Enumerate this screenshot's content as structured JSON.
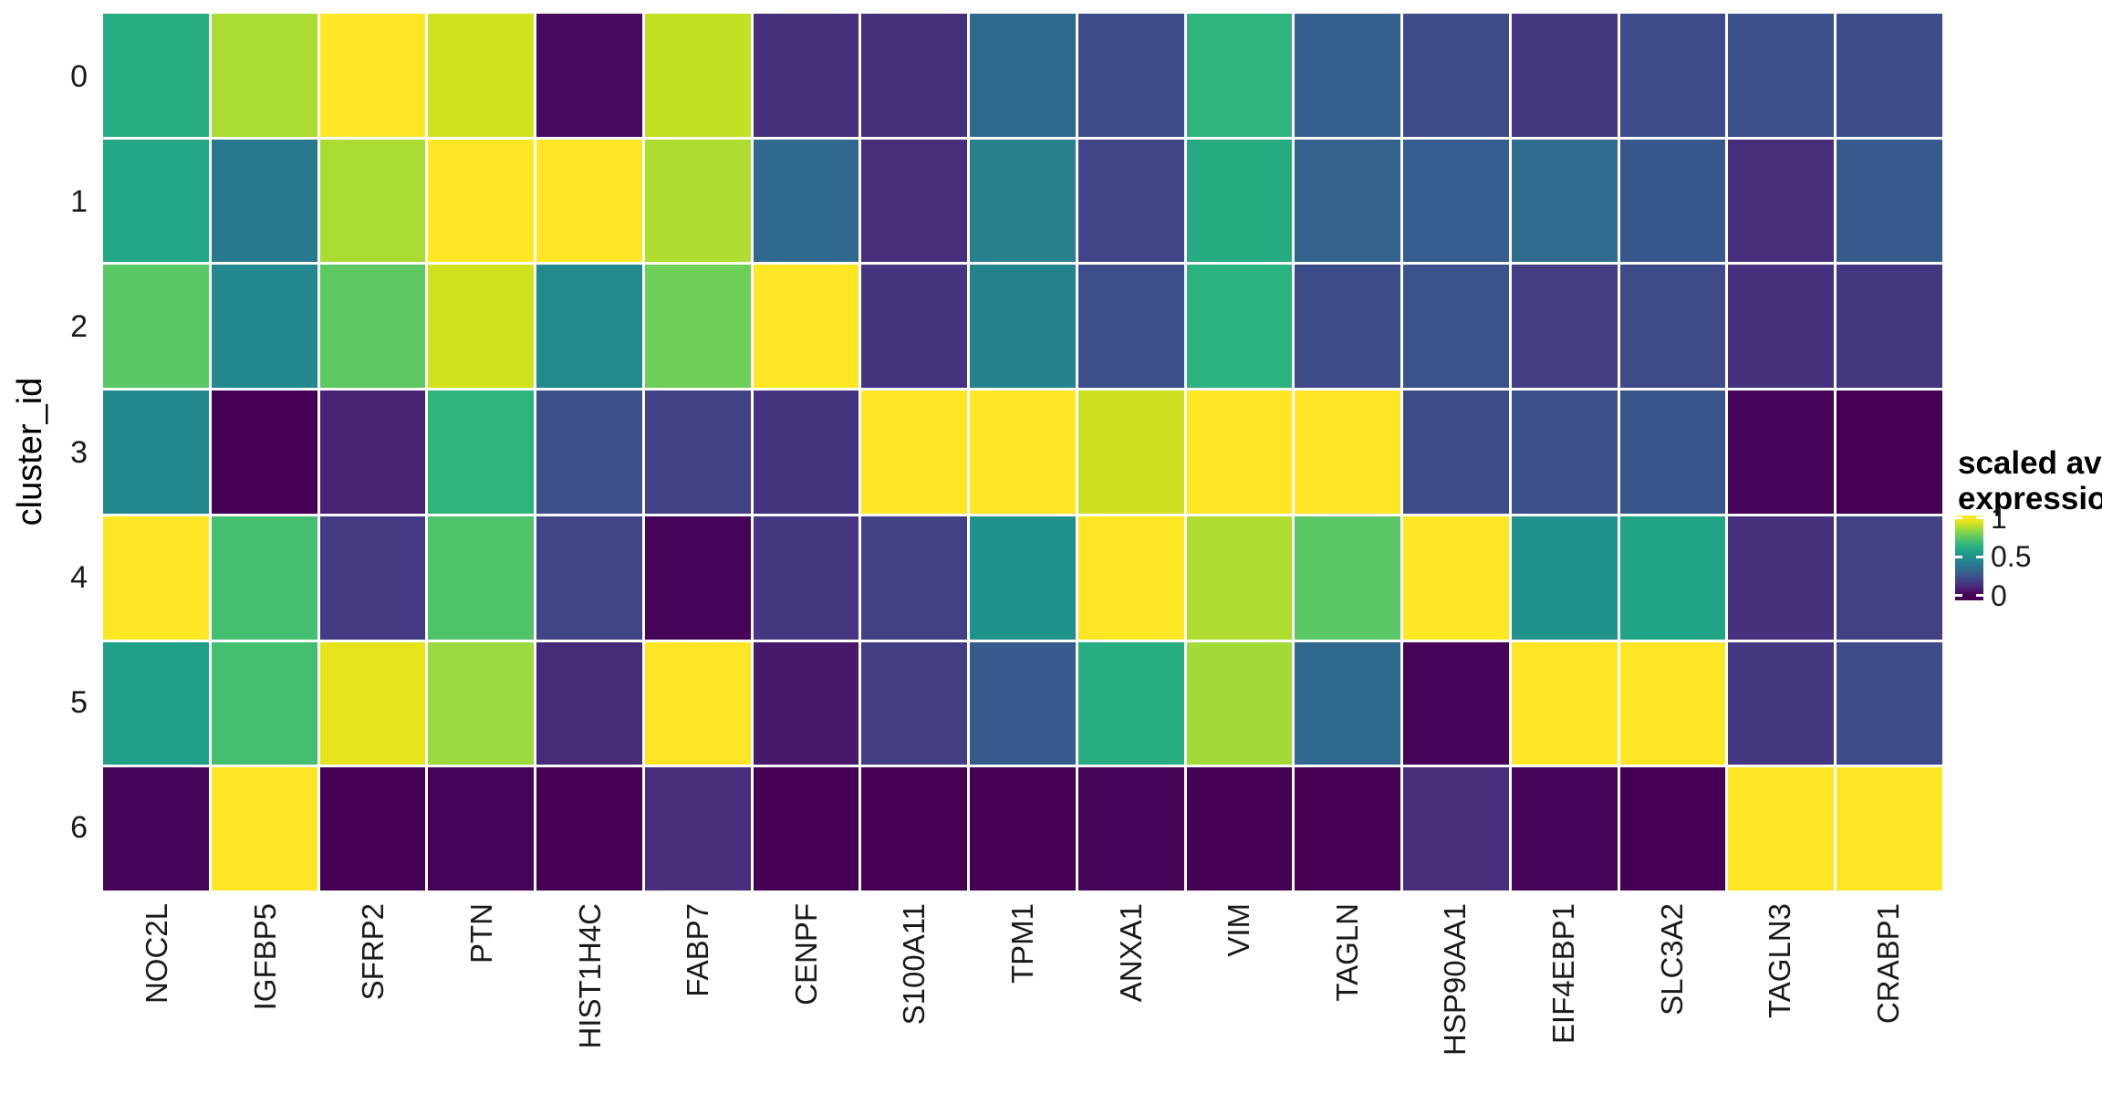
{
  "chart_data": {
    "type": "heatmap",
    "title": "",
    "ylabel": "cluster_id",
    "xlabel": "",
    "x_categories": [
      "NOC2L",
      "IGFBP5",
      "SFRP2",
      "PTN",
      "HIST1H4C",
      "FABP7",
      "CENPF",
      "S100A11",
      "TPM1",
      "ANXA1",
      "VIM",
      "TAGLN",
      "HSP90AA1",
      "EIF4EBP1",
      "SLC3A2",
      "TAGLN3",
      "CRABP1"
    ],
    "y_categories": [
      "0",
      "1",
      "2",
      "3",
      "4",
      "5",
      "6"
    ],
    "values": [
      [
        0.62,
        0.87,
        1.0,
        0.93,
        0.03,
        0.91,
        0.14,
        0.14,
        0.34,
        0.23,
        0.65,
        0.3,
        0.22,
        0.16,
        0.22,
        0.24,
        0.23
      ],
      [
        0.6,
        0.4,
        0.87,
        1.0,
        1.0,
        0.88,
        0.34,
        0.13,
        0.43,
        0.2,
        0.61,
        0.31,
        0.29,
        0.35,
        0.27,
        0.13,
        0.28
      ],
      [
        0.74,
        0.46,
        0.75,
        0.93,
        0.47,
        0.78,
        1.0,
        0.15,
        0.44,
        0.24,
        0.64,
        0.23,
        0.25,
        0.18,
        0.22,
        0.14,
        0.16
      ],
      [
        0.46,
        0.0,
        0.1,
        0.65,
        0.24,
        0.19,
        0.15,
        1.0,
        1.0,
        0.92,
        1.0,
        1.0,
        0.23,
        0.24,
        0.26,
        0.01,
        0.0
      ],
      [
        1.0,
        0.7,
        0.17,
        0.72,
        0.2,
        0.01,
        0.16,
        0.19,
        0.5,
        1.0,
        0.88,
        0.74,
        1.0,
        0.5,
        0.58,
        0.14,
        0.19
      ],
      [
        0.57,
        0.7,
        0.96,
        0.85,
        0.12,
        1.0,
        0.07,
        0.18,
        0.28,
        0.62,
        0.86,
        0.33,
        0.01,
        1.0,
        1.0,
        0.16,
        0.22
      ],
      [
        0.01,
        1.0,
        0.0,
        0.01,
        0.0,
        0.13,
        0.0,
        0.0,
        0.0,
        0.01,
        0.0,
        0.0,
        0.13,
        0.01,
        0.0,
        1.0,
        1.0
      ]
    ],
    "value_range": [
      0,
      1
    ],
    "colormap": "viridis",
    "colormap_anchors": [
      [
        0.0,
        "#440154"
      ],
      [
        0.05,
        "#471164"
      ],
      [
        0.1,
        "#482475"
      ],
      [
        0.15,
        "#463480"
      ],
      [
        0.2,
        "#414487"
      ],
      [
        0.25,
        "#3b528b"
      ],
      [
        0.3,
        "#34608d"
      ],
      [
        0.35,
        "#2e6d8e"
      ],
      [
        0.4,
        "#29798e"
      ],
      [
        0.45,
        "#24858e"
      ],
      [
        0.5,
        "#21918c"
      ],
      [
        0.55,
        "#1f9d89"
      ],
      [
        0.6,
        "#22a884"
      ],
      [
        0.65,
        "#2fb47c"
      ],
      [
        0.7,
        "#44bf70"
      ],
      [
        0.75,
        "#5ec962"
      ],
      [
        0.8,
        "#7ad151"
      ],
      [
        0.85,
        "#9bd93c"
      ],
      [
        0.9,
        "#bddf26"
      ],
      [
        0.95,
        "#dfe318"
      ],
      [
        1.0,
        "#fde725"
      ]
    ],
    "grid": false,
    "legend": {
      "position": "right",
      "title_line1": "scaled avg.",
      "title_line2": "expression",
      "tick_labels": [
        "1",
        "0.5",
        "0"
      ],
      "tick_values": [
        1,
        0.5,
        0
      ],
      "bar_top_value": 1.03,
      "bar_bottom_value": -0.06
    }
  },
  "colors": {
    "background": "#ffffff",
    "cell_border": "#ffffff",
    "axis_text": "#1a1a1a",
    "title_text": "#000000",
    "legend_tick_mark": "#ffffff"
  }
}
